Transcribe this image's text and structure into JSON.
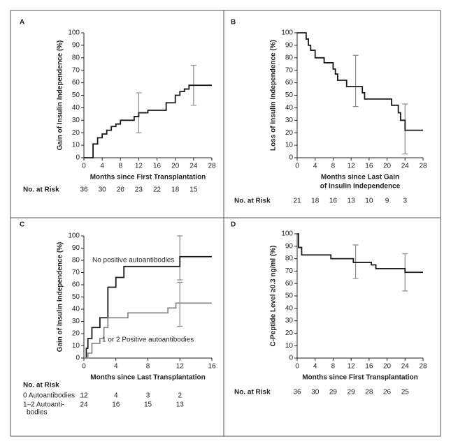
{
  "chart_data": [
    {
      "type": "step",
      "panel": "A",
      "xlabel": [
        "Months since First Transplantation"
      ],
      "ylabel": "Gain of Insulin Independence (%)",
      "xlim": [
        0,
        28
      ],
      "xticks": [
        0,
        4,
        8,
        12,
        16,
        20,
        24,
        28
      ],
      "ylim": [
        0,
        100
      ],
      "yticks": [
        0,
        10,
        20,
        30,
        40,
        50,
        60,
        70,
        80,
        90,
        100
      ],
      "series": [
        {
          "color": "#1a1a1a",
          "x": [
            0,
            2,
            3,
            4,
            5,
            6,
            7,
            8,
            11,
            12,
            14,
            18,
            20,
            21,
            22,
            23,
            28
          ],
          "values": [
            0,
            11,
            16,
            19,
            22,
            25,
            27,
            30,
            33,
            36,
            38,
            44,
            50,
            53,
            55,
            58,
            58
          ]
        }
      ],
      "error_bar_color": "#8c8c8c",
      "error_bars": [
        {
          "x": 12,
          "low": 20,
          "high": 52
        },
        {
          "x": 24,
          "low": 42,
          "high": 74
        }
      ],
      "risk_table": {
        "title": "No. at Risk",
        "rows": [
          {
            "values": [
              36,
              30,
              26,
              23,
              22,
              18,
              15
            ]
          }
        ]
      }
    },
    {
      "type": "step",
      "panel": "B",
      "xlabel": [
        "Months since Last Gain",
        "of Insulin Independence"
      ],
      "ylabel": "Loss of Insulin Independence (%)",
      "xlim": [
        0,
        28
      ],
      "xticks": [
        0,
        4,
        8,
        12,
        16,
        20,
        24,
        28
      ],
      "ylim": [
        0,
        100
      ],
      "yticks": [
        0,
        10,
        20,
        30,
        40,
        50,
        60,
        70,
        80,
        90,
        100
      ],
      "series": [
        {
          "color": "#1a1a1a",
          "x": [
            0,
            2,
            2.5,
            3,
            4,
            6,
            8,
            8.5,
            9,
            11,
            14.5,
            15,
            21,
            22.5,
            23,
            24,
            28
          ],
          "values": [
            100,
            95,
            90,
            86,
            80,
            76,
            71,
            67,
            62,
            57,
            52,
            47,
            42,
            36,
            30,
            22,
            22
          ]
        }
      ],
      "error_bar_color": "#8c8c8c",
      "error_bars": [
        {
          "x": 13,
          "low": 41,
          "high": 82
        },
        {
          "x": 24,
          "low": 3,
          "high": 43
        }
      ],
      "risk_table": {
        "title": "No. at Risk",
        "rows": [
          {
            "values": [
              21,
              18,
              16,
              13,
              10,
              9,
              3
            ]
          }
        ]
      }
    },
    {
      "type": "step",
      "panel": "C",
      "xlabel": [
        "Months since Last Transplantation"
      ],
      "ylabel": "Gain of Insulin Independence (%)",
      "xlim": [
        0,
        16
      ],
      "xticks": [
        0,
        4,
        8,
        12,
        16
      ],
      "ylim": [
        0,
        100
      ],
      "yticks": [
        0,
        10,
        20,
        30,
        40,
        50,
        60,
        70,
        80,
        90,
        100
      ],
      "series": [
        {
          "name": "No positive autoantibodies",
          "color": "#1a1a1a",
          "x": [
            0,
            0.3,
            0.5,
            1,
            2,
            3,
            4,
            5,
            12,
            16
          ],
          "values": [
            0,
            8,
            16,
            25,
            33,
            58,
            66,
            75,
            83,
            83
          ]
        },
        {
          "name": "1 or 2 Positive autoantibodies",
          "color": "#8c8c8c",
          "x": [
            0,
            0.5,
            1,
            2,
            2.5,
            3,
            5.5,
            10.5,
            11.5,
            16
          ],
          "values": [
            0,
            4,
            12,
            16,
            25,
            33,
            37,
            41,
            45,
            45
          ]
        }
      ],
      "error_bar_color": "#8c8c8c",
      "error_bars": [
        {
          "x": 12,
          "low": 64,
          "high": 100
        },
        {
          "x": 12,
          "low": 26,
          "high": 62
        }
      ],
      "risk_table": {
        "title": "No. at Risk",
        "rows": [
          {
            "label": [
              "0 Autoantibodies"
            ],
            "values": [
              12,
              4,
              3,
              2
            ]
          },
          {
            "label": [
              "1–2 Autoanti-",
              "bodies"
            ],
            "values": [
              24,
              16,
              15,
              13
            ]
          }
        ]
      }
    },
    {
      "type": "step",
      "panel": "D",
      "xlabel": [
        "Months since First Transplantation"
      ],
      "ylabel": "C-Peptide Level ≥0.3 ng/ml (%)",
      "xlim": [
        0,
        28
      ],
      "xticks": [
        0,
        4,
        8,
        12,
        16,
        20,
        24,
        28
      ],
      "ylim": [
        0,
        100
      ],
      "yticks": [
        0,
        10,
        20,
        30,
        40,
        50,
        60,
        70,
        80,
        90,
        100
      ],
      "series": [
        {
          "color": "#1a1a1a",
          "x": [
            0,
            0.3,
            1,
            7.5,
            12.5,
            16.5,
            17.5,
            24,
            28
          ],
          "values": [
            100,
            89,
            83,
            80,
            77,
            75,
            72,
            69,
            69
          ]
        }
      ],
      "error_bar_color": "#8c8c8c",
      "error_bars": [
        {
          "x": 13,
          "low": 64,
          "high": 91
        },
        {
          "x": 24,
          "low": 54,
          "high": 84
        }
      ],
      "risk_table": {
        "title": "No. at Risk",
        "rows": [
          {
            "values": [
              36,
              30,
              29,
              29,
              28,
              26,
              25
            ]
          }
        ]
      }
    }
  ]
}
